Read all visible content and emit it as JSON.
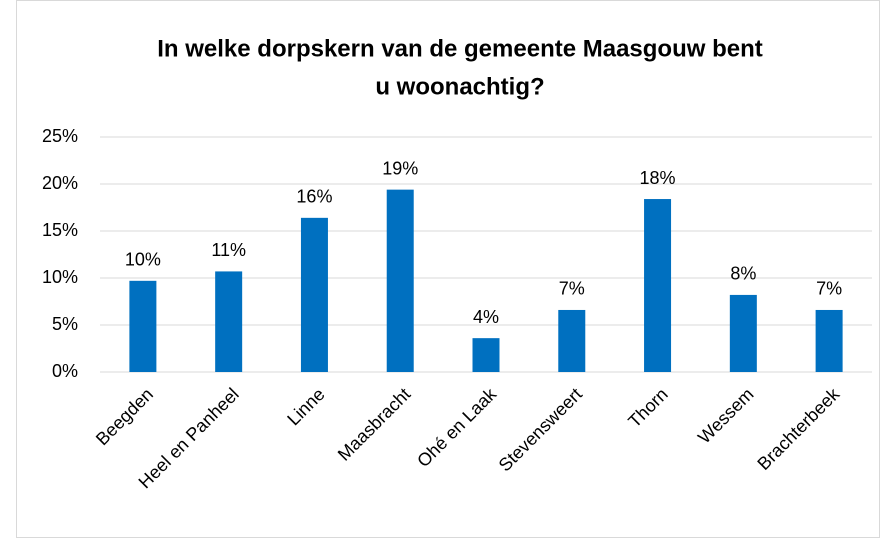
{
  "chart_data": {
    "type": "bar",
    "title": [
      "In welke dorpskern van de gemeente Maasgouw bent",
      "u woonachtig?"
    ],
    "categories": [
      "Beegden",
      "Heel en Panheel",
      "Linne",
      "Maasbracht",
      "Ohé en Laak",
      "Stevensweert",
      "Thorn",
      "Wessem",
      "Brachterbeek"
    ],
    "values": [
      9.7,
      10.7,
      16.4,
      19.4,
      3.6,
      6.6,
      18.4,
      8.2,
      6.6
    ],
    "value_labels": [
      "10%",
      "11%",
      "16%",
      "19%",
      "4%",
      "7%",
      "18%",
      "8%",
      "7%"
    ],
    "color": "#0070c0",
    "ylim": [
      0,
      25
    ],
    "yticks": [
      {
        "value": 0,
        "label": "0%"
      },
      {
        "value": 5,
        "label": "5%"
      },
      {
        "value": 10,
        "label": "10%"
      },
      {
        "value": 15,
        "label": "15%"
      },
      {
        "value": 20,
        "label": "20%"
      },
      {
        "value": 25,
        "label": "25%"
      }
    ],
    "grid": true
  }
}
